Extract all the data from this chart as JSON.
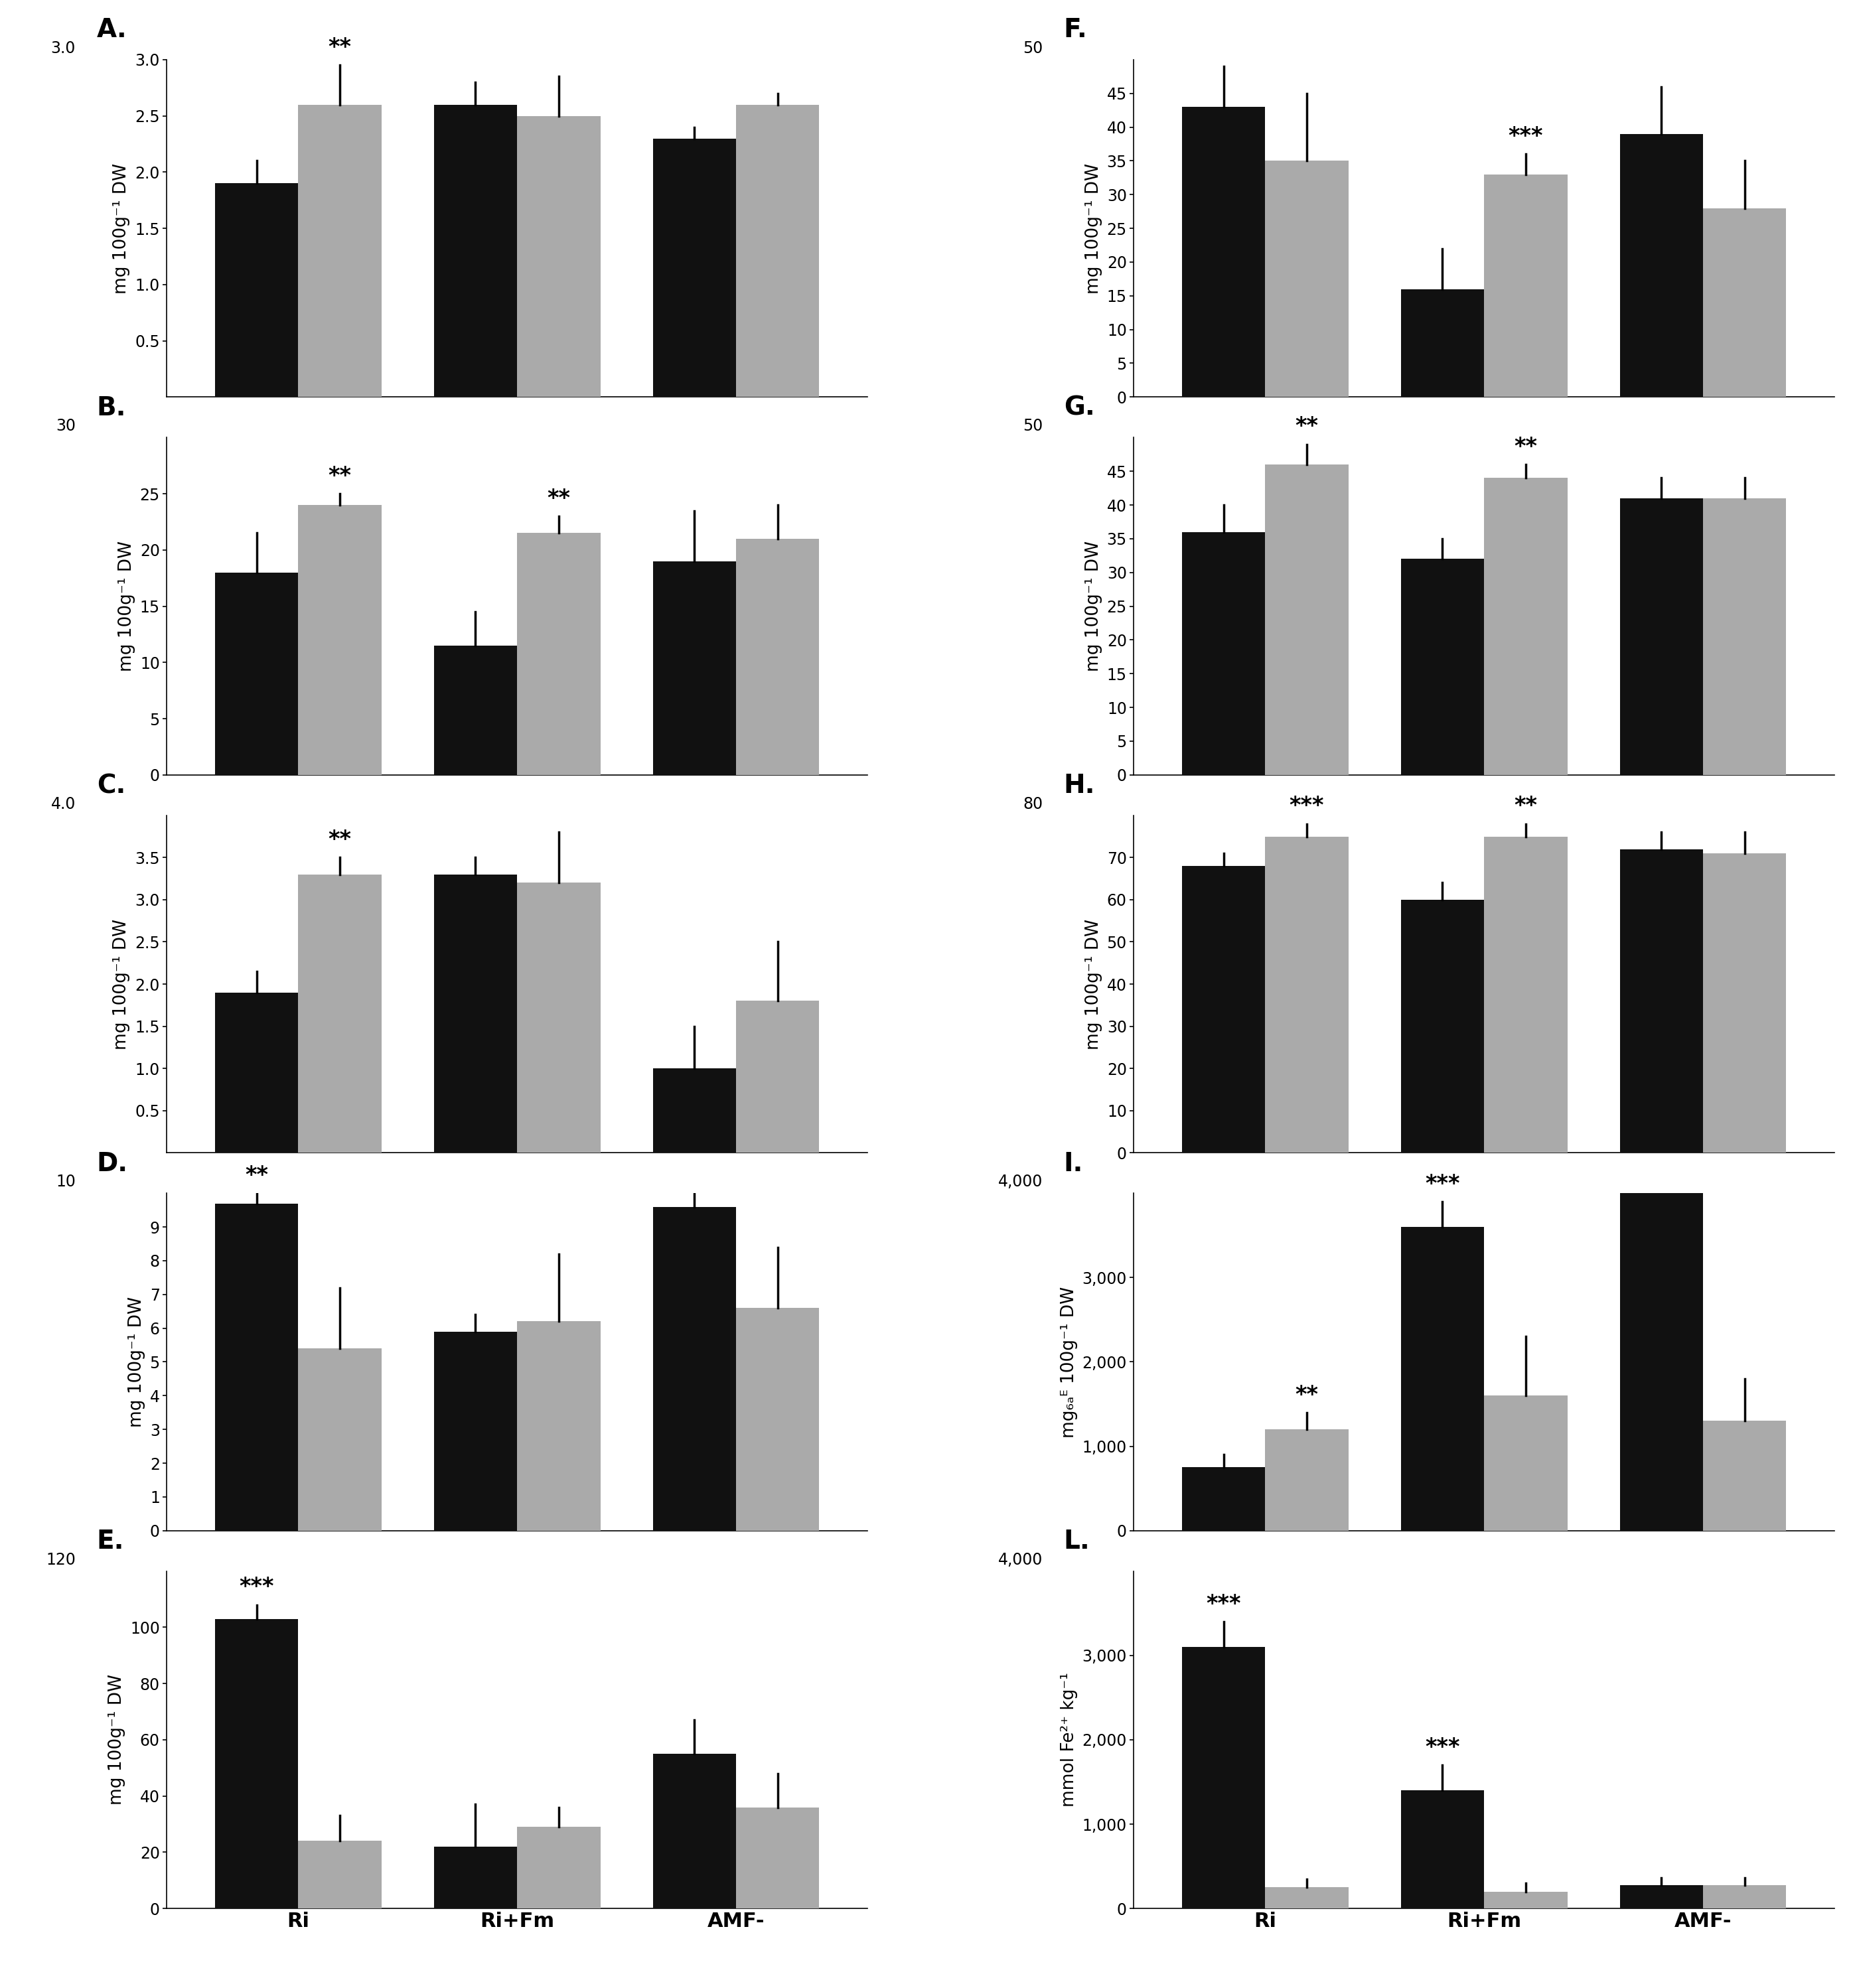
{
  "panels": {
    "A": {
      "ylabel": "mg 100g⁻¹ DW",
      "ylim": [
        0.0,
        3.0
      ],
      "yticks": [
        0.5,
        1.0,
        1.5,
        2.0,
        2.5,
        3.0
      ],
      "yticklabels": [
        "0.5",
        "1.0",
        "1.5",
        "2.0",
        "2.5",
        "3.0"
      ],
      "ytop_label": "3.0",
      "values_black": [
        1.9,
        2.6,
        2.3
      ],
      "values_gray": [
        2.6,
        2.5,
        2.6
      ],
      "err_black": [
        0.2,
        0.2,
        0.1
      ],
      "err_gray": [
        0.35,
        0.35,
        0.1
      ],
      "sig": [
        "**",
        "",
        ""
      ],
      "sig_on": [
        "gray",
        "",
        ""
      ]
    },
    "B": {
      "ylabel": "mg 100g⁻¹ DW",
      "ylim": [
        0,
        30
      ],
      "yticks": [
        0,
        5,
        10,
        15,
        20,
        25
      ],
      "yticklabels": [
        "0",
        "5",
        "10",
        "15",
        "20",
        "25"
      ],
      "ytop_label": "30",
      "values_black": [
        18.0,
        11.5,
        19.0
      ],
      "values_gray": [
        24.0,
        21.5,
        21.0
      ],
      "err_black": [
        3.5,
        3.0,
        4.5
      ],
      "err_gray": [
        1.0,
        1.5,
        3.0
      ],
      "sig": [
        "**",
        "**",
        ""
      ],
      "sig_on": [
        "gray",
        "gray",
        ""
      ]
    },
    "C": {
      "ylabel": "mg 100g⁻¹ DW",
      "ylim": [
        0.0,
        4.0
      ],
      "yticks": [
        0.5,
        1.0,
        1.5,
        2.0,
        2.5,
        3.0,
        3.5
      ],
      "yticklabels": [
        "0.5",
        "1.0",
        "1.5",
        "2.0",
        "2.5",
        "3.0",
        "3.5"
      ],
      "ytop_label": "4.0",
      "values_black": [
        1.9,
        3.3,
        1.0
      ],
      "values_gray": [
        3.3,
        3.2,
        1.8
      ],
      "err_black": [
        0.25,
        0.2,
        0.5
      ],
      "err_gray": [
        0.2,
        0.6,
        0.7
      ],
      "sig": [
        "**",
        "",
        ""
      ],
      "sig_on": [
        "gray",
        "",
        ""
      ]
    },
    "D": {
      "ylabel": "mg 100g⁻¹ DW",
      "ylim": [
        0,
        10
      ],
      "yticks": [
        0,
        1,
        2,
        3,
        4,
        5,
        6,
        7,
        8,
        9
      ],
      "yticklabels": [
        "0",
        "1",
        "2",
        "3",
        "4",
        "5",
        "6",
        "7",
        "8",
        "9"
      ],
      "ytop_label": "10",
      "values_black": [
        9.7,
        5.9,
        9.6
      ],
      "values_gray": [
        5.4,
        6.2,
        6.6
      ],
      "err_black": [
        0.3,
        0.5,
        0.5
      ],
      "err_gray": [
        1.8,
        2.0,
        1.8
      ],
      "sig": [
        "**",
        "",
        ""
      ],
      "sig_on": [
        "black",
        "",
        ""
      ]
    },
    "E": {
      "ylabel": "mg 100g⁻¹ DW",
      "ylim": [
        0,
        120
      ],
      "yticks": [
        0,
        20,
        40,
        60,
        80,
        100
      ],
      "yticklabels": [
        "0",
        "20",
        "40",
        "60",
        "80",
        "100"
      ],
      "ytop_label": "120",
      "values_black": [
        103,
        22,
        55
      ],
      "values_gray": [
        24,
        29,
        36
      ],
      "err_black": [
        5,
        15,
        12
      ],
      "err_gray": [
        9,
        7,
        12
      ],
      "sig": [
        "***",
        "",
        ""
      ],
      "sig_on": [
        "black",
        "",
        ""
      ]
    },
    "F": {
      "ylabel": "mg 100g⁻¹ DW",
      "ylim": [
        0,
        50
      ],
      "yticks": [
        0,
        5,
        10,
        15,
        20,
        25,
        30,
        35,
        40,
        45
      ],
      "yticklabels": [
        "0",
        "5",
        "10",
        "15",
        "20",
        "25",
        "30",
        "35",
        "40",
        "45"
      ],
      "ytop_label": "50",
      "values_black": [
        43,
        16,
        39
      ],
      "values_gray": [
        35,
        33,
        28
      ],
      "err_black": [
        6,
        6,
        7
      ],
      "err_gray": [
        10,
        3,
        7
      ],
      "sig": [
        "",
        "***",
        ""
      ],
      "sig_on": [
        "",
        "gray",
        ""
      ]
    },
    "G": {
      "ylabel": "mg 100g⁻¹ DW",
      "ylim": [
        0,
        50
      ],
      "yticks": [
        0,
        5,
        10,
        15,
        20,
        25,
        30,
        35,
        40,
        45
      ],
      "yticklabels": [
        "0",
        "5",
        "10",
        "15",
        "20",
        "25",
        "30",
        "35",
        "40",
        "45"
      ],
      "ytop_label": "50",
      "values_black": [
        36,
        32,
        41
      ],
      "values_gray": [
        46,
        44,
        41
      ],
      "err_black": [
        4,
        3,
        3
      ],
      "err_gray": [
        3,
        2,
        3
      ],
      "sig": [
        "**",
        "**",
        ""
      ],
      "sig_on": [
        "gray",
        "gray",
        ""
      ]
    },
    "H": {
      "ylabel": "mg 100g⁻¹ DW",
      "ylim": [
        0,
        80
      ],
      "yticks": [
        0,
        10,
        20,
        30,
        40,
        50,
        60,
        70
      ],
      "yticklabels": [
        "0",
        "10",
        "20",
        "30",
        "40",
        "50",
        "60",
        "70"
      ],
      "ytop_label": "80",
      "values_black": [
        68,
        60,
        72
      ],
      "values_gray": [
        75,
        75,
        71
      ],
      "err_black": [
        3,
        4,
        4
      ],
      "err_gray": [
        3,
        3,
        5
      ],
      "sig": [
        "***",
        "**",
        ""
      ],
      "sig_on": [
        "gray",
        "gray",
        ""
      ]
    },
    "I": {
      "ylabel": "mg₆ₐᴱ 100g⁻¹ DW",
      "ylim": [
        0,
        4000
      ],
      "yticks": [
        0,
        1000,
        2000,
        3000
      ],
      "yticklabels": [
        "0",
        "1,000",
        "2,000",
        "3,000"
      ],
      "ytop_label": "4,000",
      "values_black": [
        750,
        3600,
        4100
      ],
      "values_gray": [
        1200,
        1600,
        1300
      ],
      "err_black": [
        150,
        300,
        300
      ],
      "err_gray": [
        200,
        700,
        500
      ],
      "sig": [
        "**",
        "***",
        ""
      ],
      "sig_on": [
        "gray",
        "black",
        ""
      ]
    },
    "L": {
      "ylabel": "mmol Fe²⁺ kg⁻¹",
      "ylim": [
        0,
        4000
      ],
      "yticks": [
        0,
        1000,
        2000,
        3000
      ],
      "yticklabels": [
        "0",
        "1,000",
        "2,000",
        "3,000"
      ],
      "ytop_label": "4,000",
      "values_black": [
        3100,
        1400,
        280
      ],
      "values_gray": [
        250,
        200,
        280
      ],
      "err_black": [
        300,
        300,
        80
      ],
      "err_gray": [
        100,
        100,
        80
      ],
      "sig": [
        "***",
        "***",
        ""
      ],
      "sig_on": [
        "black",
        "black",
        ""
      ]
    }
  },
  "groups": [
    "Ri",
    "Ri+Fm",
    "AMF-"
  ],
  "bar_color_black": "#111111",
  "bar_color_gray": "#aaaaaa",
  "bar_width": 0.38,
  "layout": {
    "panel_order_left": [
      "A",
      "B",
      "C",
      "D",
      "E"
    ],
    "panel_order_right": [
      "F",
      "G",
      "H",
      "I",
      "L"
    ]
  }
}
